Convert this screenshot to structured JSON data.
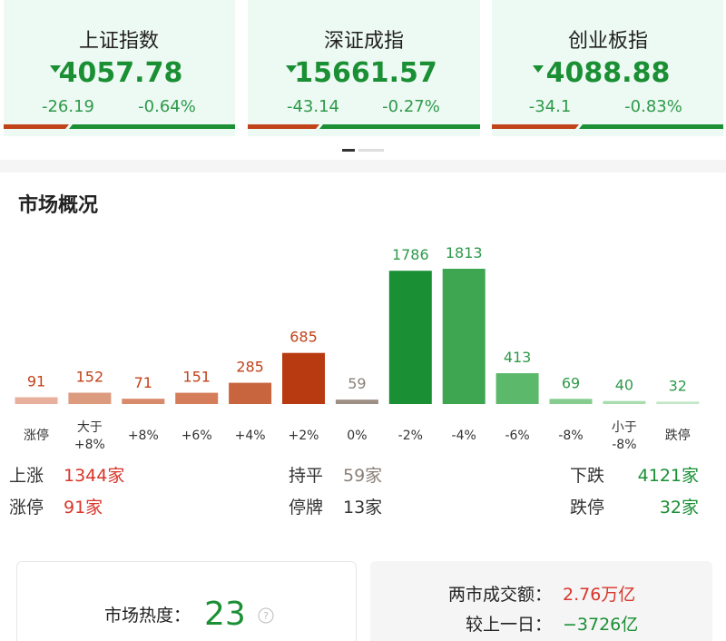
{
  "indices": [
    {
      "name": "上证指数",
      "value": "4057.78",
      "change": "-26.19",
      "pct": "-0.64%"
    },
    {
      "name": "深证成指",
      "value": "15661.57",
      "change": "-43.14",
      "pct": "-0.27%"
    },
    {
      "name": "创业板指",
      "value": "4088.88",
      "change": "-34.1",
      "pct": "-0.83%"
    }
  ],
  "section_title": "市场概况",
  "chart_data": {
    "type": "bar",
    "categories": [
      "涨停",
      "大于 +8%",
      "+8%",
      "+6%",
      "+4%",
      "+2%",
      "0%",
      "-2%",
      "-4%",
      "-6%",
      "-8%",
      "小于 -8%",
      "跌停"
    ],
    "values": [
      91,
      152,
      71,
      151,
      285,
      685,
      59,
      1786,
      1813,
      413,
      69,
      40,
      32
    ],
    "colors": [
      "#e8b09c",
      "#dc9a7f",
      "#d88a6c",
      "#d57c5a",
      "#c9653e",
      "#b83a10",
      "#9e8f85",
      "#1a8f34",
      "#3ea650",
      "#5cb86a",
      "#85cc8e",
      "#a7dcae",
      "#c2e7c6"
    ]
  },
  "summary": {
    "up": {
      "label": "上涨",
      "value": "1344家"
    },
    "limit_up": {
      "label": "涨停",
      "value": "91家"
    },
    "flat": {
      "label": "持平",
      "value": "59家"
    },
    "suspended": {
      "label": "停牌",
      "value": "13家"
    },
    "down": {
      "label": "下跌",
      "value": "4121家"
    },
    "limit_down": {
      "label": "跌停",
      "value": "32家"
    }
  },
  "heat": {
    "label": "市场热度：",
    "value": "23"
  },
  "turnover": {
    "label": "两市成交额：",
    "value": "2.76万亿",
    "diff_label": "较上一日：",
    "diff_value": "−3726亿"
  }
}
